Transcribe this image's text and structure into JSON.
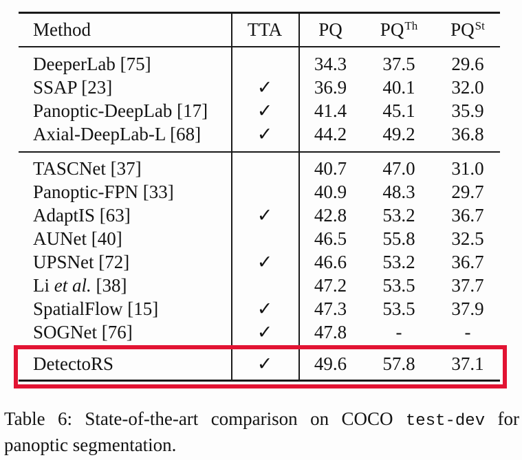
{
  "colors": {
    "page_background": "#fdfdfd",
    "text": "#141414",
    "rule": "#1a1a1a",
    "highlight_box": "#e21433"
  },
  "table": {
    "header": {
      "method": "Method",
      "tta": "TTA",
      "pq": "PQ",
      "pq_th_base": "PQ",
      "pq_th_sup": "Th",
      "pq_st_base": "PQ",
      "pq_st_sup": "St"
    },
    "checkmark_icon": "✓",
    "sections": [
      {
        "rows": [
          {
            "method": "DeeperLab [75]",
            "tta": "",
            "pq": "34.3",
            "pq_th": "37.5",
            "pq_st": "29.6"
          },
          {
            "method": "SSAP [23]",
            "tta": "✓",
            "pq": "36.9",
            "pq_th": "40.1",
            "pq_st": "32.0"
          },
          {
            "method": "Panoptic-DeepLab [17]",
            "tta": "✓",
            "pq": "41.4",
            "pq_th": "45.1",
            "pq_st": "35.9"
          },
          {
            "method": "Axial-DeepLab-L [68]",
            "tta": "✓",
            "pq": "44.2",
            "pq_th": "49.2",
            "pq_st": "36.8"
          }
        ]
      },
      {
        "rows": [
          {
            "method": "TASCNet [37]",
            "tta": "",
            "pq": "40.7",
            "pq_th": "47.0",
            "pq_st": "31.0"
          },
          {
            "method": "Panoptic-FPN [33]",
            "tta": "",
            "pq": "40.9",
            "pq_th": "48.3",
            "pq_st": "29.7"
          },
          {
            "method": "AdaptIS [63]",
            "tta": "✓",
            "pq": "42.8",
            "pq_th": "53.2",
            "pq_st": "36.7"
          },
          {
            "method": "AUNet [40]",
            "tta": "",
            "pq": "46.5",
            "pq_th": "55.8",
            "pq_st": "32.5"
          },
          {
            "method": "UPSNet [72]",
            "tta": "✓",
            "pq": "46.6",
            "pq_th": "53.2",
            "pq_st": "36.7"
          },
          {
            "method_pre": "Li ",
            "method_italic": "et al.",
            "method_post": " [38]",
            "tta": "",
            "pq": "47.2",
            "pq_th": "53.5",
            "pq_st": "37.7"
          },
          {
            "method": "SpatialFlow [15]",
            "tta": "✓",
            "pq": "47.3",
            "pq_th": "53.5",
            "pq_st": "37.9"
          },
          {
            "method": "SOGNet [76]",
            "tta": "✓",
            "pq": "47.8",
            "pq_th": "-",
            "pq_st": "-"
          }
        ]
      },
      {
        "rows": [
          {
            "method": "DetectoRS",
            "tta": "✓",
            "pq": "49.6",
            "pq_th": "57.8",
            "pq_st": "37.1"
          }
        ]
      }
    ]
  },
  "caption": {
    "pre": "Table 6: State-of-the-art comparison on COCO ",
    "mono": "test-dev",
    "post": " for panoptic segmentation."
  }
}
